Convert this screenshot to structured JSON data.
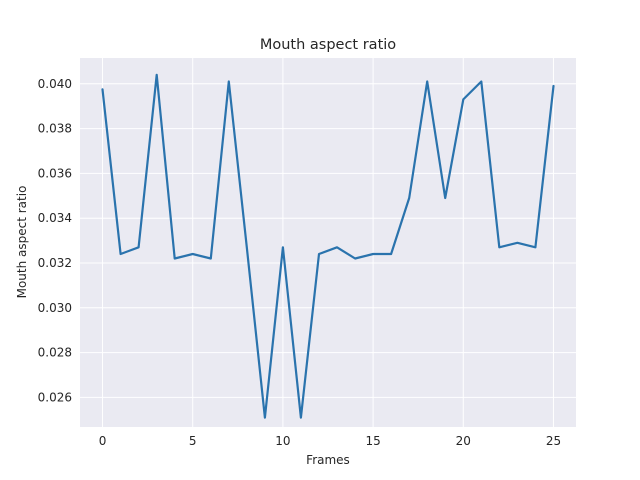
{
  "chart_data": {
    "type": "line",
    "title": "Mouth aspect ratio",
    "xlabel": "Frames",
    "ylabel": "Mouth aspect ratio",
    "xlim": [
      -1.25,
      26.25
    ],
    "ylim": [
      0.02468,
      0.04115
    ],
    "xticks": [
      0,
      5,
      10,
      15,
      20,
      25
    ],
    "yticks": [
      0.026,
      0.028,
      0.03,
      0.032,
      0.034,
      0.036,
      0.038,
      0.04
    ],
    "grid": true,
    "series": [
      {
        "color": "#2a73ad",
        "x": [
          0,
          1,
          2,
          3,
          4,
          5,
          6,
          7,
          8,
          9,
          10,
          11,
          12,
          13,
          14,
          15,
          16,
          17,
          18,
          19,
          20,
          21,
          22,
          23,
          24,
          25
        ],
        "y": [
          0.03975,
          0.0324,
          0.0327,
          0.0404,
          0.0322,
          0.0324,
          0.0322,
          0.0401,
          0.0327,
          0.0251,
          0.0327,
          0.0251,
          0.0324,
          0.0327,
          0.0322,
          0.0324,
          0.0324,
          0.0349,
          0.0401,
          0.0349,
          0.0393,
          0.0401,
          0.0327,
          0.0329,
          0.0327,
          0.0399
        ]
      }
    ]
  },
  "colors": {
    "plot_background": "#eaeaf2",
    "grid": "#ffffff",
    "line": "#2a73ad",
    "text": "#262626"
  }
}
